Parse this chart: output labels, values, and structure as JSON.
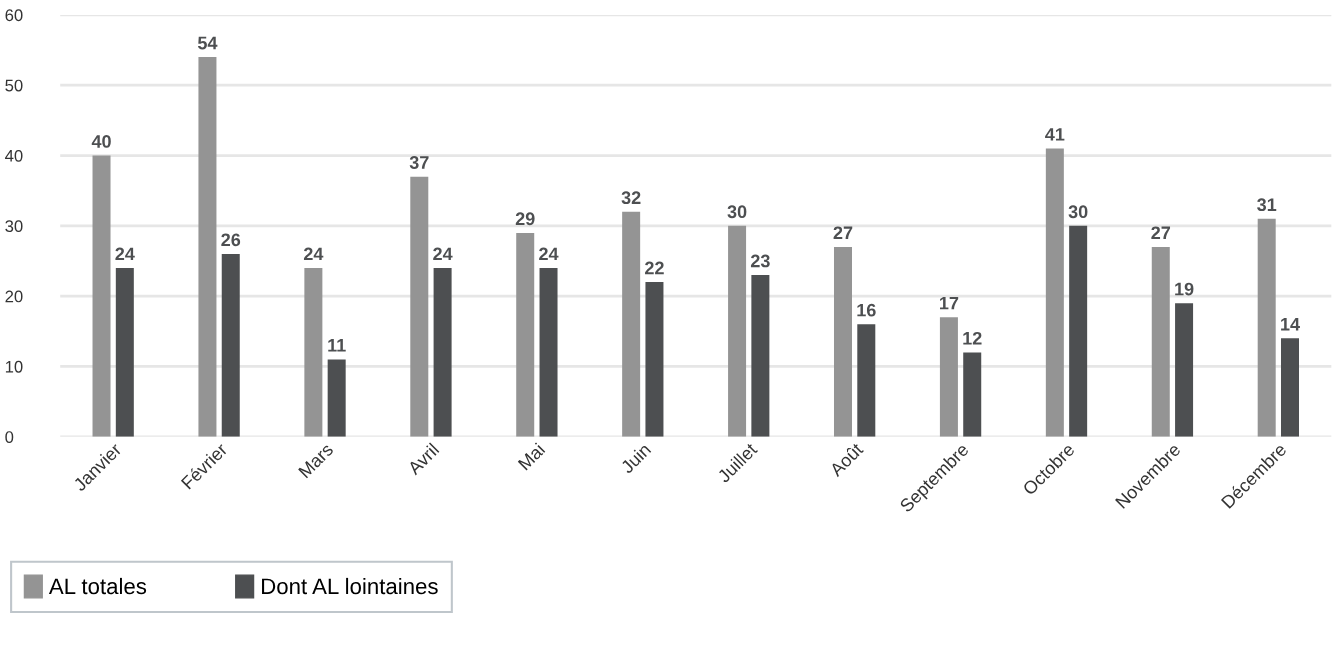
{
  "chart_data": {
    "type": "bar",
    "categories": [
      "Janvier",
      "Février",
      "Mars",
      "Avril",
      "Mai",
      "Juin",
      "Juillet",
      "Août",
      "Septembre",
      "Octobre",
      "Novembre",
      "Décembre"
    ],
    "series": [
      {
        "name": "AL totales",
        "color": "#949494",
        "values": [
          40,
          54,
          24,
          37,
          29,
          32,
          30,
          27,
          17,
          41,
          27,
          31
        ]
      },
      {
        "name": "Dont AL lointaines",
        "color": "#4d4f51",
        "values": [
          24,
          26,
          11,
          24,
          24,
          22,
          23,
          16,
          12,
          30,
          19,
          14
        ]
      }
    ],
    "ylim": [
      0,
      60
    ],
    "yticks": [
      0,
      10,
      20,
      30,
      40,
      50,
      60
    ],
    "grid": "y",
    "legend": "bottom left",
    "data_labels": true
  }
}
